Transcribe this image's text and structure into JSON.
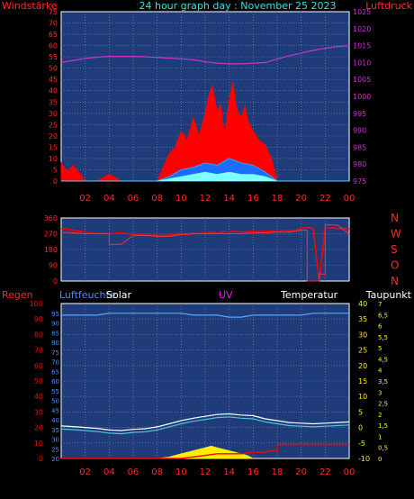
{
  "header": {
    "left_label": "Windstärke",
    "title": "24 hour graph day : November 25 2023",
    "right_label": "Luftdruck"
  },
  "x_ticks": [
    "02",
    "04",
    "06",
    "08",
    "10",
    "12",
    "14",
    "16",
    "18",
    "20",
    "22",
    "00"
  ],
  "colors": {
    "panel_bg": "#1f3c7a",
    "grid": "#7f8fb3",
    "wind_axis": "#ff2a2a",
    "pressure_axis": "#cc33cc",
    "header_title": "#38e0e0",
    "dir_axis": "#ff2a2a",
    "humidity_axis": "#4f8ff0",
    "temperature": "#ffffff",
    "dewpoint": "#4fc3d8",
    "solar": "#ffee00",
    "rain": "#ff0000"
  },
  "chart_data": [
    {
      "type": "line",
      "name": "wind_pressure",
      "x_range": [
        0,
        24
      ],
      "y_left": {
        "label": "Windstärke",
        "ylim": [
          0,
          75
        ],
        "ticks": [
          0,
          5,
          10,
          15,
          20,
          25,
          30,
          35,
          40,
          45,
          50,
          55,
          60,
          65,
          70,
          75
        ]
      },
      "y_right": {
        "label": "Luftdruck",
        "ylim": [
          975,
          1025
        ],
        "ticks": [
          975,
          980,
          985,
          990,
          995,
          1000,
          1005,
          1010,
          1015,
          1020,
          1025
        ]
      },
      "pressure": {
        "x": [
          0,
          1,
          2,
          3,
          4,
          5,
          6,
          7,
          8,
          9,
          10,
          11,
          12,
          13,
          14,
          15,
          16,
          17,
          18,
          19,
          20,
          21,
          22,
          23,
          24
        ],
        "y": [
          1010.0,
          1010.6,
          1011.2,
          1011.6,
          1011.8,
          1011.8,
          1011.8,
          1011.7,
          1011.5,
          1011.3,
          1011.1,
          1010.8,
          1010.2,
          1009.8,
          1009.6,
          1009.6,
          1009.8,
          1010.0,
          1011.0,
          1012.0,
          1012.8,
          1013.6,
          1014.2,
          1014.7,
          1015.0
        ]
      },
      "gust": {
        "x": [
          0,
          0.5,
          1,
          2,
          3,
          4,
          5,
          6,
          7,
          8,
          8.5,
          9,
          9.5,
          10,
          10.5,
          11,
          11.5,
          12,
          12.3,
          12.6,
          13,
          13.3,
          13.6,
          14,
          14.3,
          14.6,
          15,
          15.3,
          15.6,
          16,
          16.5,
          17,
          17.5,
          18,
          18.5,
          19,
          20,
          21,
          22,
          23,
          24
        ],
        "y": [
          8,
          4,
          7,
          0,
          0,
          3,
          0,
          0,
          0,
          0,
          6,
          12,
          15,
          22,
          18,
          28,
          20,
          30,
          38,
          42,
          30,
          34,
          20,
          36,
          44,
          32,
          28,
          33,
          26,
          22,
          18,
          16,
          10,
          0,
          0,
          0,
          0,
          0,
          0,
          0,
          0
        ]
      },
      "average": {
        "x": [
          0,
          8,
          9,
          10,
          11,
          12,
          13,
          14,
          15,
          16,
          17,
          18,
          24
        ],
        "y": [
          0,
          0,
          2,
          5,
          6,
          8,
          7,
          10,
          8,
          7,
          4,
          0,
          0
        ]
      },
      "calm": {
        "x": [
          0,
          8,
          9,
          10,
          11,
          12,
          13,
          14,
          15,
          16,
          17,
          18,
          24
        ],
        "y": [
          0,
          0,
          1,
          2,
          3,
          4,
          3,
          4,
          3,
          3,
          2,
          0,
          0
        ]
      }
    },
    {
      "type": "line",
      "name": "wind_direction",
      "x_range": [
        0,
        24
      ],
      "y_left": {
        "ylim": [
          0,
          360
        ],
        "ticks": [
          0,
          90,
          180,
          270,
          360
        ]
      },
      "y_right_labels": [
        "N",
        "W",
        "S",
        "O",
        "N"
      ],
      "direction": {
        "x": [
          0,
          0.5,
          1,
          1.5,
          2,
          2.5,
          3,
          4,
          5,
          5.5,
          6,
          6.5,
          7,
          7.5,
          8,
          8.5,
          9,
          9.5,
          10,
          10.5,
          11,
          11.5,
          12,
          12.5,
          13,
          13.5,
          14,
          14.5,
          15,
          15.5,
          16,
          16.5,
          17,
          17.5,
          18,
          18.5,
          19,
          19.5,
          20,
          20.5,
          21,
          21.5,
          22,
          22.5,
          23,
          23.5,
          24
        ],
        "y": [
          300,
          295,
          290,
          285,
          280,
          275,
          270,
          270,
          275,
          270,
          268,
          265,
          262,
          262,
          260,
          258,
          262,
          268,
          270,
          266,
          272,
          270,
          276,
          280,
          272,
          282,
          278,
          285,
          278,
          282,
          284,
          280,
          286,
          284,
          282,
          290,
          285,
          288,
          300,
          305,
          300,
          0,
          300,
          305,
          300,
          300,
          300
        ]
      },
      "prevailing": {
        "x": [
          0,
          2,
          4,
          4,
          5,
          6,
          7,
          8,
          9,
          10,
          11,
          12,
          13,
          14,
          15,
          16,
          17,
          18,
          19,
          20,
          20.5,
          20.5,
          21.5,
          21.5,
          22,
          22,
          23,
          24
        ],
        "y": [
          280,
          270,
          270,
          210,
          210,
          260,
          260,
          255,
          255,
          265,
          270,
          270,
          270,
          270,
          270,
          275,
          275,
          280,
          280,
          290,
          290,
          0,
          0,
          40,
          40,
          320,
          320,
          270
        ]
      }
    },
    {
      "type": "line",
      "name": "humidity_solar_uv_temp_rain",
      "x_range": [
        0,
        24
      ],
      "labels": {
        "rain": "Regen",
        "humidity": "Luftfeuchte",
        "solar": "Solar",
        "uv": "UV",
        "temperature": "Temperatur",
        "dewpoint": "Taupunkt"
      },
      "y_rain": {
        "ylim": [
          0,
          100
        ],
        "ticks": [
          0,
          10,
          20,
          30,
          40,
          50,
          60,
          70,
          80,
          90,
          100
        ]
      },
      "y_humidity": {
        "ylim": [
          20,
          100
        ],
        "ticks": [
          20,
          25,
          30,
          35,
          40,
          45,
          50,
          55,
          60,
          65,
          70,
          75,
          80,
          85,
          90,
          95
        ]
      },
      "y_temperature": {
        "ylim": [
          -10,
          40
        ],
        "ticks": [
          -10,
          -5,
          0,
          5,
          10,
          15,
          20,
          25,
          30,
          35,
          40
        ]
      },
      "y_uv": {
        "ylim": [
          0,
          7
        ],
        "ticks": [
          "0",
          "0,5",
          "1",
          "1,5",
          "2",
          "2,5",
          "3",
          "3,5",
          "4",
          "4,5",
          "5",
          "5,5",
          "6",
          "6,5",
          "7"
        ]
      },
      "humidity": {
        "x": [
          0,
          1,
          2,
          3,
          4,
          5,
          6,
          7,
          8,
          9,
          10,
          11,
          12,
          13,
          14,
          15,
          16,
          17,
          18,
          19,
          20,
          21,
          22,
          23,
          24
        ],
        "y": [
          94,
          94,
          94,
          94,
          95,
          95,
          95,
          95,
          95,
          95,
          95,
          94,
          94,
          94,
          93,
          93,
          94,
          94,
          94,
          94,
          94,
          95,
          95,
          95,
          95
        ]
      },
      "temperature": {
        "x": [
          0,
          1,
          2,
          3,
          4,
          5,
          6,
          7,
          8,
          9,
          10,
          11,
          12,
          13,
          14,
          15,
          16,
          17,
          18,
          19,
          20,
          21,
          22,
          23,
          24
        ],
        "y": [
          0.5,
          0.3,
          0.0,
          -0.3,
          -0.8,
          -1.0,
          -0.6,
          -0.4,
          0.2,
          1.2,
          2.2,
          3.0,
          3.6,
          4.2,
          4.4,
          4.0,
          3.8,
          2.8,
          2.2,
          1.6,
          1.4,
          1.2,
          1.4,
          1.6,
          1.8
        ]
      },
      "dewpoint": {
        "x": [
          0,
          1,
          2,
          3,
          4,
          5,
          6,
          7,
          8,
          9,
          10,
          11,
          12,
          13,
          14,
          15,
          16,
          17,
          18,
          19,
          20,
          21,
          22,
          23,
          24
        ],
        "y": [
          -0.5,
          -0.7,
          -1.0,
          -1.3,
          -1.8,
          -2.0,
          -1.6,
          -1.4,
          -0.8,
          0.2,
          1.2,
          2.0,
          2.6,
          3.2,
          3.4,
          3.0,
          2.8,
          1.8,
          1.2,
          0.6,
          0.4,
          0.2,
          0.4,
          0.6,
          0.8
        ]
      },
      "solar": {
        "x": [
          8,
          9,
          10,
          11,
          11.5,
          12,
          12.5,
          13,
          13.5,
          14,
          14.5,
          15,
          15.5,
          16
        ],
        "y": [
          0,
          1,
          3,
          5,
          6,
          7,
          8,
          7,
          6,
          5,
          4,
          3,
          2,
          0
        ]
      },
      "rain": {
        "x": [
          0,
          10,
          11,
          12,
          13,
          15,
          16,
          17,
          17.5,
          18,
          18,
          24
        ],
        "y": [
          0,
          0,
          1,
          2,
          3,
          3,
          4,
          4,
          5,
          5,
          9,
          9
        ]
      }
    }
  ]
}
